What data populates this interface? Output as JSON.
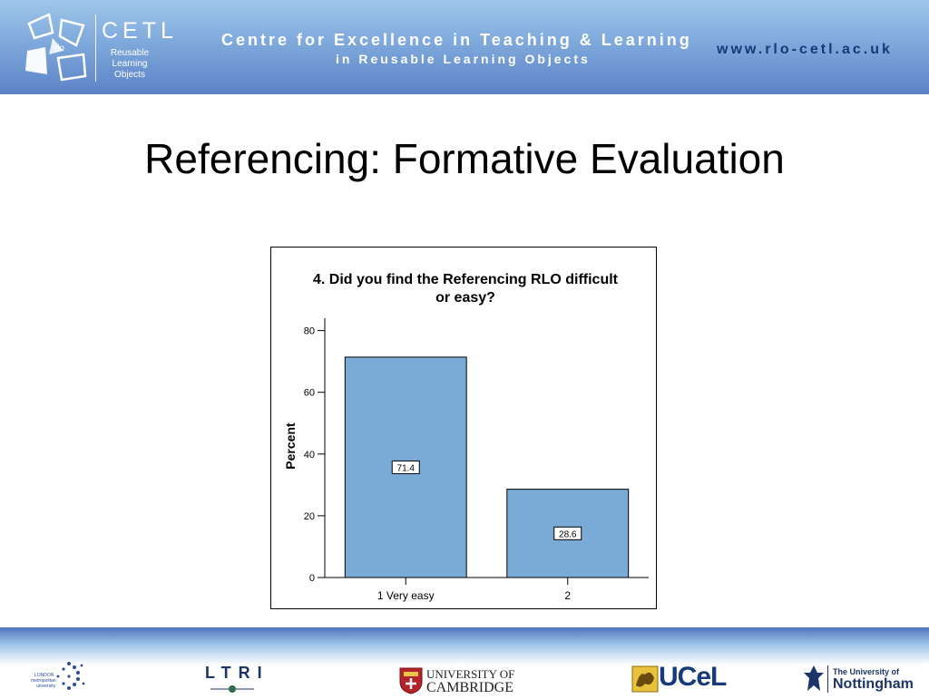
{
  "header": {
    "logo_text": "rlo",
    "cetl": "CETL",
    "cetl_sub": [
      "Reusable",
      "Learning",
      "Objects"
    ],
    "centre_line1": "Centre for Excellence in Teaching & Learning",
    "centre_line2": "in Reusable Learning Objects",
    "url": "www.rlo-cetl.ac.uk",
    "colors": {
      "banner_top": "#9ec6ea",
      "banner_bottom": "#5c82c6",
      "url_text": "#163a78"
    }
  },
  "slide": {
    "title": "Referencing: Formative Evaluation"
  },
  "chart_data": {
    "type": "bar",
    "title": "4. Did you find the Referencing RLO difficult or easy?",
    "title_lines": [
      "4. Did you find the Referencing RLO difficult",
      "or easy?"
    ],
    "categories": [
      "1 Very easy",
      "2"
    ],
    "values": [
      71.4,
      28.6
    ],
    "value_labels": [
      "71.4",
      "28.6"
    ],
    "ylabel": "Percent",
    "xlabel": "",
    "ylim": [
      0,
      84
    ],
    "yticks": [
      0,
      20,
      40,
      60,
      80
    ],
    "ytick_labels": [
      "0",
      "20",
      "40",
      "60",
      "80"
    ],
    "grid": false,
    "legend": "none",
    "bar_color": "#7aaad6"
  },
  "footer": {
    "logos": [
      {
        "name": "London Metropolitan University",
        "icon": "dot-star-icon",
        "text": [
          "LONDON",
          "metropolitan",
          "university"
        ]
      },
      {
        "name": "LTRI",
        "text": "LTRI"
      },
      {
        "name": "University of Cambridge",
        "icon": "cambridge-crest-icon",
        "text": [
          "UNIVERSITY OF",
          "CAMBRIDGE"
        ]
      },
      {
        "name": "UCeL",
        "icon": "lion-crest-icon",
        "text": "UCeL"
      },
      {
        "name": "The University of Nottingham",
        "icon": "nottingham-crest-icon",
        "text": [
          "The University of",
          "Nottingham"
        ]
      }
    ]
  }
}
